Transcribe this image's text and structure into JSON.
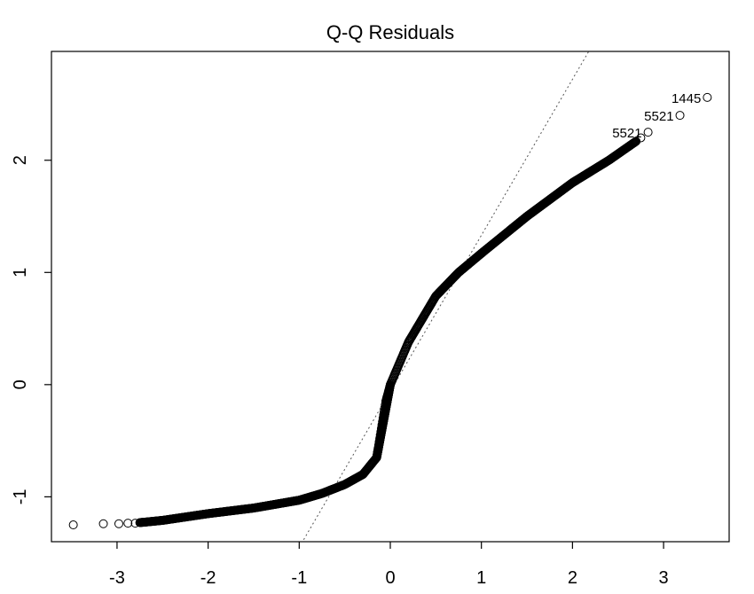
{
  "chart_data": {
    "type": "scatter",
    "title": "Q-Q Residuals",
    "xlabel": "",
    "ylabel": "",
    "xlim": [
      -3.72,
      3.72
    ],
    "ylim": [
      -1.4,
      2.97
    ],
    "x_ticks": [
      -3,
      -2,
      -1,
      0,
      1,
      2,
      3
    ],
    "y_ticks": [
      -1,
      0,
      1,
      2
    ],
    "grid": false,
    "marker": "open-circle",
    "reference_line": {
      "style": "dotted",
      "points": [
        [
          -1.0,
          -1.45
        ],
        [
          2.2,
          3.0
        ]
      ]
    },
    "tail_points": [
      {
        "x": -3.48,
        "y": -1.25
      },
      {
        "x": -3.15,
        "y": -1.24
      },
      {
        "x": -2.98,
        "y": -1.24
      },
      {
        "x": -2.88,
        "y": -1.235
      },
      {
        "x": -2.8,
        "y": -1.235
      },
      {
        "x": 2.75,
        "y": 2.2
      },
      {
        "x": 2.83,
        "y": 2.25
      },
      {
        "x": 3.18,
        "y": 2.4
      },
      {
        "x": 3.48,
        "y": 2.56
      }
    ],
    "labeled_points": [
      {
        "label": "1445",
        "x": 3.48,
        "y": 2.56
      },
      {
        "label": "5521",
        "x": 3.18,
        "y": 2.4
      },
      {
        "label": "5521",
        "x": 2.83,
        "y": 2.25
      }
    ],
    "body_curve": [
      [
        -2.75,
        -1.23
      ],
      [
        -2.5,
        -1.21
      ],
      [
        -2.25,
        -1.18
      ],
      [
        -2.0,
        -1.15
      ],
      [
        -1.5,
        -1.1
      ],
      [
        -1.0,
        -1.03
      ],
      [
        -0.75,
        -0.97
      ],
      [
        -0.5,
        -0.89
      ],
      [
        -0.3,
        -0.8
      ],
      [
        -0.15,
        -0.65
      ],
      [
        -0.05,
        -0.15
      ],
      [
        0.0,
        0.0
      ],
      [
        0.2,
        0.38
      ],
      [
        0.5,
        0.79
      ],
      [
        0.75,
        1.0
      ],
      [
        1.0,
        1.17
      ],
      [
        1.5,
        1.5
      ],
      [
        2.0,
        1.8
      ],
      [
        2.4,
        2.0
      ],
      [
        2.7,
        2.17
      ]
    ],
    "colors": {
      "points": "#000000",
      "reference_line": "#555555"
    }
  }
}
